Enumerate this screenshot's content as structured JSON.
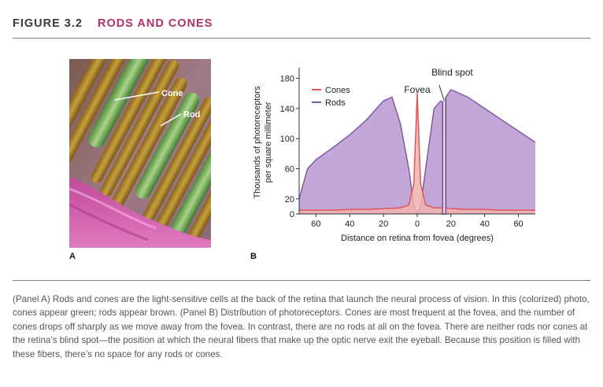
{
  "figure": {
    "number": "FIGURE 3.2",
    "title": "RODS AND CONES"
  },
  "panel_a": {
    "label": "A",
    "cone_label": "Cone",
    "rod_label": "Rod"
  },
  "panel_b": {
    "label": "B"
  },
  "chart_data": {
    "type": "area",
    "xlabel": "Distance on retina from fovea (degrees)",
    "ylabel_line1": "Thousands of photoreceptors",
    "ylabel_line2": "per square millimeter",
    "x_ticks": [
      60,
      40,
      20,
      0,
      20,
      40,
      60
    ],
    "y_ticks": [
      0,
      20,
      60,
      100,
      140,
      180
    ],
    "ylim": [
      0,
      190
    ],
    "xlim": [
      -70,
      70
    ],
    "legend_position": "top-left",
    "annotations": {
      "fovea": "Fovea",
      "blind_spot": "Blind spot"
    },
    "series": [
      {
        "name": "Cones",
        "color": "#e0555a",
        "x": [
          -70,
          -60,
          -50,
          -40,
          -30,
          -20,
          -10,
          -5,
          -2,
          0,
          2,
          5,
          10,
          15,
          15.01,
          16.99,
          17,
          20,
          30,
          40,
          50,
          60,
          70
        ],
        "y": [
          5,
          5,
          5,
          6,
          6,
          7,
          8,
          12,
          40,
          160,
          40,
          12,
          8,
          8,
          0,
          0,
          8,
          7,
          6,
          6,
          5,
          5,
          5
        ]
      },
      {
        "name": "Rods",
        "color": "#7f5ba6",
        "x": [
          -70,
          -65,
          -60,
          -50,
          -40,
          -30,
          -20,
          -15,
          -10,
          -5,
          -2,
          0,
          2,
          5,
          10,
          14,
          15,
          15.01,
          16.99,
          17,
          20,
          25,
          30,
          40,
          50,
          60,
          70
        ],
        "y": [
          20,
          60,
          72,
          88,
          105,
          125,
          150,
          155,
          120,
          60,
          10,
          0,
          10,
          60,
          140,
          150,
          148,
          0,
          0,
          155,
          165,
          160,
          155,
          140,
          125,
          110,
          95
        ]
      }
    ]
  },
  "caption": "(Panel A) Rods and cones are the light-sensitive cells at the back of the retina that launch the neural process of vision. In this (colorized) photo, cones appear green; rods appear brown. (Panel B) Distribution of photoreceptors. Cones are most frequent at the fovea, and the number of cones drops off sharply as we move away from the fovea. In contrast, there are no rods at all on the fovea. There are neither rods nor cones at the retina’s blind spot—the position at which the neural fibers that make up the optic nerve exit the eyeball. Because this position is filled with these fibers, there’s no space for any rods or cones.",
  "colors": {
    "title_accent": "#b0306a",
    "cones": "#e0555a",
    "rods": "#7f5ba6",
    "rods_fill": "#c3a7d6",
    "cones_fill": "#f0b3ad"
  }
}
